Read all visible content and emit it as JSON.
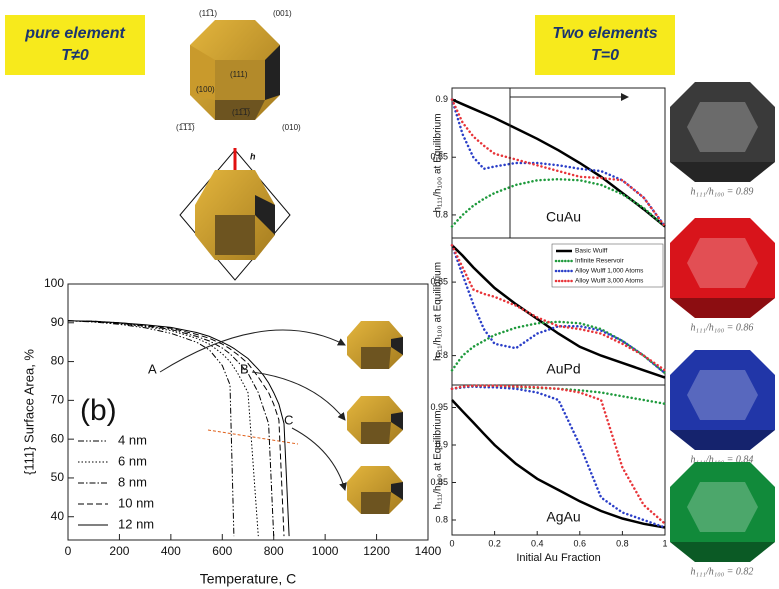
{
  "labels": {
    "left_box": [
      "pure element",
      "T≠0"
    ],
    "right_box": [
      "Two elements",
      "T=0"
    ],
    "facets": [
      "(11̅1)",
      "(001)",
      "(111)",
      "(100)",
      "(1̅1̅1̅)",
      "(11̅1̅)",
      "(010)"
    ],
    "height": "h"
  },
  "chart_data": [
    {
      "type": "line",
      "ylabel": "{111} Surface Area, %",
      "xlabel": "Temperature, C",
      "annotations": [
        "(b)",
        "A",
        "B",
        "C"
      ],
      "legend": "lower left",
      "x": [
        0,
        100,
        200,
        300,
        400,
        500,
        550,
        600,
        630,
        645,
        660,
        700,
        740,
        760,
        780,
        800,
        820,
        840,
        860
      ],
      "xlim": [
        0,
        1400
      ],
      "xticks": [
        0,
        200,
        400,
        600,
        800,
        1000,
        1200,
        1400
      ],
      "ylim": [
        34,
        100
      ],
      "yticks": [
        40,
        50,
        60,
        70,
        80,
        90,
        100
      ],
      "series": [
        {
          "name": "4 nm",
          "color": "#000000",
          "linestyle": "dashdotdot",
          "values": [
            90.5,
            90.2,
            89.6,
            88.7,
            87.3,
            85,
            83,
            79,
            74,
            35,
            null,
            null,
            null,
            null,
            null,
            null,
            null,
            null,
            null
          ]
        },
        {
          "name": "6 nm",
          "color": "#000000",
          "linestyle": "dotted",
          "values": [
            90.5,
            90.3,
            89.8,
            89,
            88,
            86,
            84.5,
            82,
            80,
            78.5,
            77,
            72,
            35,
            null,
            null,
            null,
            null,
            null,
            null
          ]
        },
        {
          "name": "8 nm",
          "color": "#000000",
          "linestyle": "dashdot",
          "values": [
            90.5,
            90.3,
            89.9,
            89.2,
            88.3,
            86.5,
            85.3,
            83.5,
            82,
            81,
            80,
            77,
            72,
            68,
            64,
            35,
            null,
            null,
            null
          ]
        },
        {
          "name": "10 nm",
          "color": "#000000",
          "linestyle": "dashed",
          "values": [
            90.5,
            90.4,
            90,
            89.4,
            88.6,
            87,
            86,
            84.5,
            83.3,
            82.5,
            81.8,
            79.5,
            76,
            74,
            72,
            69,
            65,
            35,
            null
          ]
        },
        {
          "name": "12 nm",
          "color": "#000000",
          "linestyle": "solid",
          "values": [
            90.5,
            90.4,
            90,
            89.5,
            88.8,
            87.5,
            86.5,
            85,
            84,
            83.4,
            82.7,
            80.8,
            78,
            76.5,
            74.5,
            72,
            69,
            64,
            35
          ]
        }
      ]
    },
    {
      "type": "line",
      "title": "CuAu",
      "ylabel": "h₁₁₁/h₁₀₀ at Equilibrium",
      "x": [
        0,
        0.05,
        0.1,
        0.15,
        0.2,
        0.3,
        0.4,
        0.5,
        0.6,
        0.7,
        0.8,
        0.9,
        1
      ],
      "xlim": [
        0,
        1
      ],
      "ylim": [
        0.78,
        0.91
      ],
      "yticks": [
        0.8,
        0.85,
        0.9
      ],
      "series": [
        {
          "color": "#000000",
          "linestyle": "solid",
          "values": [
            0.9,
            0.896,
            0.892,
            0.888,
            0.884,
            0.875,
            0.866,
            0.856,
            0.845,
            0.833,
            0.819,
            0.805,
            0.79
          ]
        },
        {
          "color": "#1e9a3c",
          "linestyle": "dotted",
          "values": [
            0.79,
            0.8,
            0.808,
            0.814,
            0.819,
            0.826,
            0.83,
            0.831,
            0.83,
            0.826,
            0.818,
            0.806,
            0.79
          ]
        },
        {
          "color": "#2b3fc8",
          "linestyle": "dotted",
          "values": [
            0.9,
            0.87,
            0.85,
            0.84,
            0.842,
            0.845,
            0.845,
            0.843,
            0.84,
            0.838,
            0.83,
            0.815,
            0.79
          ]
        },
        {
          "color": "#e8353a",
          "linestyle": "dotted",
          "values": [
            0.9,
            0.88,
            0.868,
            0.86,
            0.853,
            0.848,
            0.843,
            0.838,
            0.833,
            0.832,
            0.83,
            0.815,
            0.79
          ]
        }
      ]
    },
    {
      "type": "line",
      "title": "AuPd",
      "ylabel": "h₁₁₁/h₁₀₀ at Equilibrium",
      "legend": "upper right",
      "x": [
        0,
        0.05,
        0.1,
        0.15,
        0.2,
        0.3,
        0.4,
        0.5,
        0.6,
        0.7,
        0.8,
        0.9,
        1
      ],
      "xlim": [
        0,
        1
      ],
      "ylim": [
        0.78,
        0.88
      ],
      "yticks": [
        0.8,
        0.85
      ],
      "series": [
        {
          "name": "Basic Wulff",
          "color": "#000000",
          "linestyle": "solid",
          "values": [
            0.875,
            0.868,
            0.86,
            0.853,
            0.846,
            0.835,
            0.825,
            0.815,
            0.806,
            0.8,
            0.795,
            0.79,
            0.785
          ]
        },
        {
          "name": "Infinite Reservoir",
          "color": "#1e9a3c",
          "linestyle": "dotted",
          "values": [
            0.79,
            0.8,
            0.806,
            0.81,
            0.814,
            0.819,
            0.822,
            0.823,
            0.822,
            0.818,
            0.81,
            0.8,
            0.788
          ]
        },
        {
          "name": "Alloy Wulff 1,000 Atoms",
          "color": "#2b3fc8",
          "linestyle": "dotted",
          "values": [
            0.875,
            0.855,
            0.835,
            0.818,
            0.808,
            0.805,
            0.815,
            0.82,
            0.82,
            0.817,
            0.81,
            0.8,
            0.788
          ]
        },
        {
          "name": "Alloy Wulff 3,000 Atoms",
          "color": "#e8353a",
          "linestyle": "dotted",
          "values": [
            0.875,
            0.86,
            0.845,
            0.842,
            0.84,
            0.834,
            0.826,
            0.82,
            0.818,
            0.815,
            0.808,
            0.8,
            0.79
          ]
        }
      ]
    },
    {
      "type": "line",
      "title": "AgAu",
      "ylabel": "h₁₁₁/h₁₀₀ at Equilibrium",
      "xlabel": "Initial Au Fraction",
      "x": [
        0,
        0.05,
        0.1,
        0.15,
        0.2,
        0.3,
        0.4,
        0.5,
        0.6,
        0.7,
        0.8,
        0.9,
        1
      ],
      "xlim": [
        0,
        1
      ],
      "xticks": [
        0,
        0.2,
        0.4,
        0.6,
        0.8,
        1
      ],
      "ylim": [
        0.78,
        0.98
      ],
      "yticks": [
        0.8,
        0.85,
        0.9,
        0.95
      ],
      "series": [
        {
          "color": "#000000",
          "linestyle": "solid",
          "values": [
            0.96,
            0.945,
            0.93,
            0.915,
            0.9,
            0.875,
            0.855,
            0.84,
            0.825,
            0.812,
            0.802,
            0.795,
            0.79
          ]
        },
        {
          "color": "#1e9a3c",
          "linestyle": "dotted",
          "values": [
            0.975,
            0.977,
            0.978,
            0.978,
            0.978,
            0.977,
            0.976,
            0.975,
            0.973,
            0.97,
            0.965,
            0.96,
            0.955
          ]
        },
        {
          "color": "#2b3fc8",
          "linestyle": "dotted",
          "values": [
            0.975,
            0.977,
            0.978,
            0.977,
            0.977,
            0.975,
            0.97,
            0.96,
            0.9,
            0.83,
            0.81,
            0.8,
            0.79
          ]
        },
        {
          "color": "#e8353a",
          "linestyle": "dotted",
          "values": [
            0.975,
            0.978,
            0.979,
            0.979,
            0.979,
            0.978,
            0.977,
            0.975,
            0.97,
            0.96,
            0.87,
            0.82,
            0.795
          ]
        }
      ]
    }
  ],
  "crystals": [
    {
      "label": "h₁₁₁/h₁₀₀ = 0.89",
      "color": "#3a3a3a"
    },
    {
      "label": "h₁₁₁/h₁₀₀ = 0.86",
      "color": "#d8141b"
    },
    {
      "label": "h₁₁₁/h₁₀₀ = 0.84",
      "color": "#2136a8"
    },
    {
      "label": "h₁₁₁/h₁₀₀ = 0.82",
      "color": "#118a3a"
    }
  ]
}
